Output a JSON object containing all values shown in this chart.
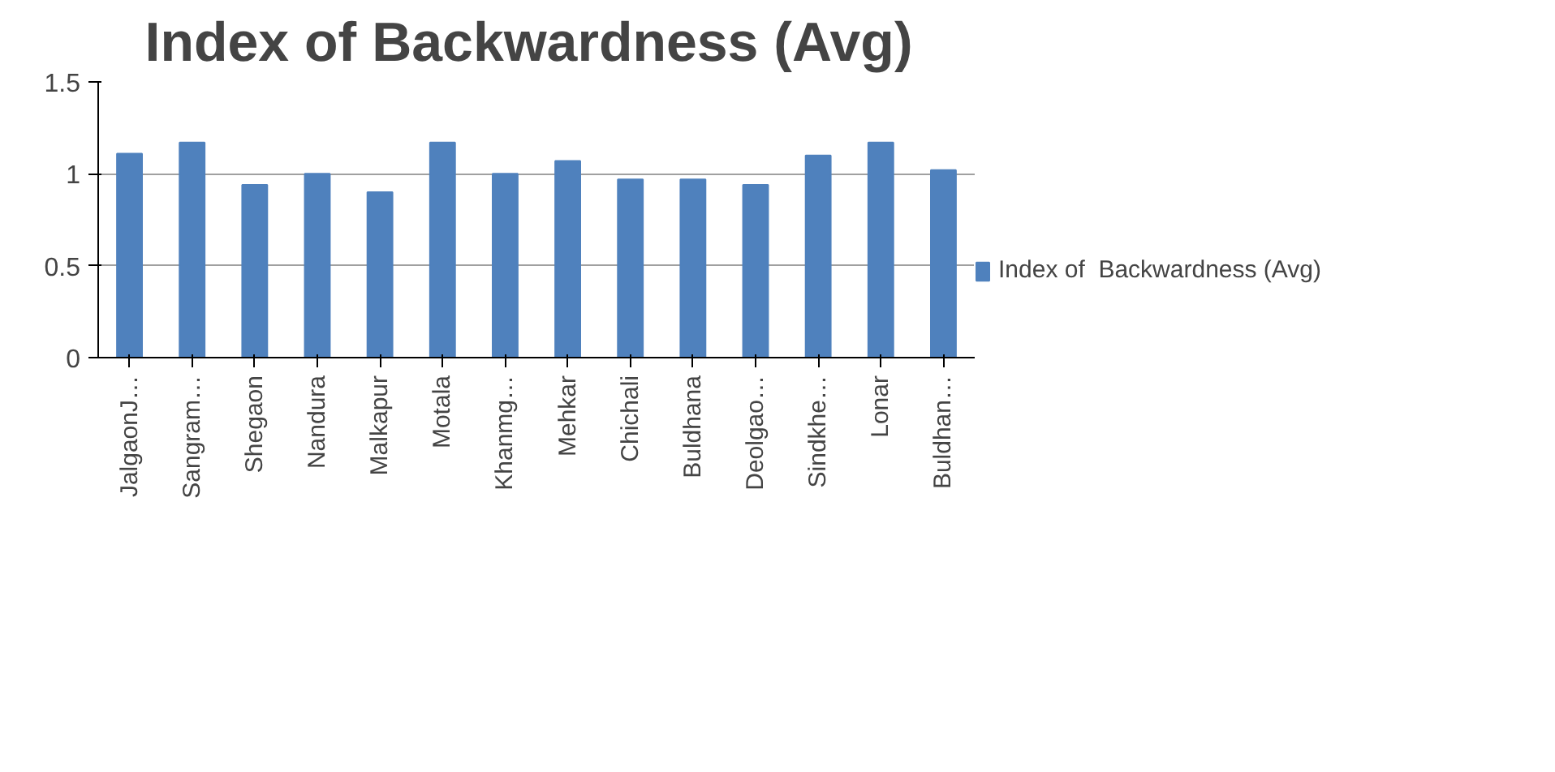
{
  "chart_data": {
    "type": "bar",
    "title": "Index of  Backwardness (Avg)",
    "categories": [
      "JalgaonJ…",
      "Sangram…",
      "Shegaon",
      "Nandura",
      "Malkapur",
      "Motala",
      "Khanmg…",
      "Mehkar",
      "Chichali",
      "Buldhana",
      "Deolgao…",
      "Sindkhe…",
      "Lonar",
      "Buldhan…"
    ],
    "series": [
      {
        "name": "Index of  Backwardness (Avg)",
        "color": "#4f81bd",
        "values": [
          1.11,
          1.17,
          0.94,
          1.0,
          0.9,
          1.17,
          1.0,
          1.07,
          0.97,
          0.97,
          0.94,
          1.1,
          1.17,
          1.02
        ]
      }
    ],
    "ylim": [
      0,
      1.5
    ],
    "yticks": [
      0,
      0.5,
      1,
      1.5
    ],
    "grid": "y",
    "legend": "right"
  }
}
